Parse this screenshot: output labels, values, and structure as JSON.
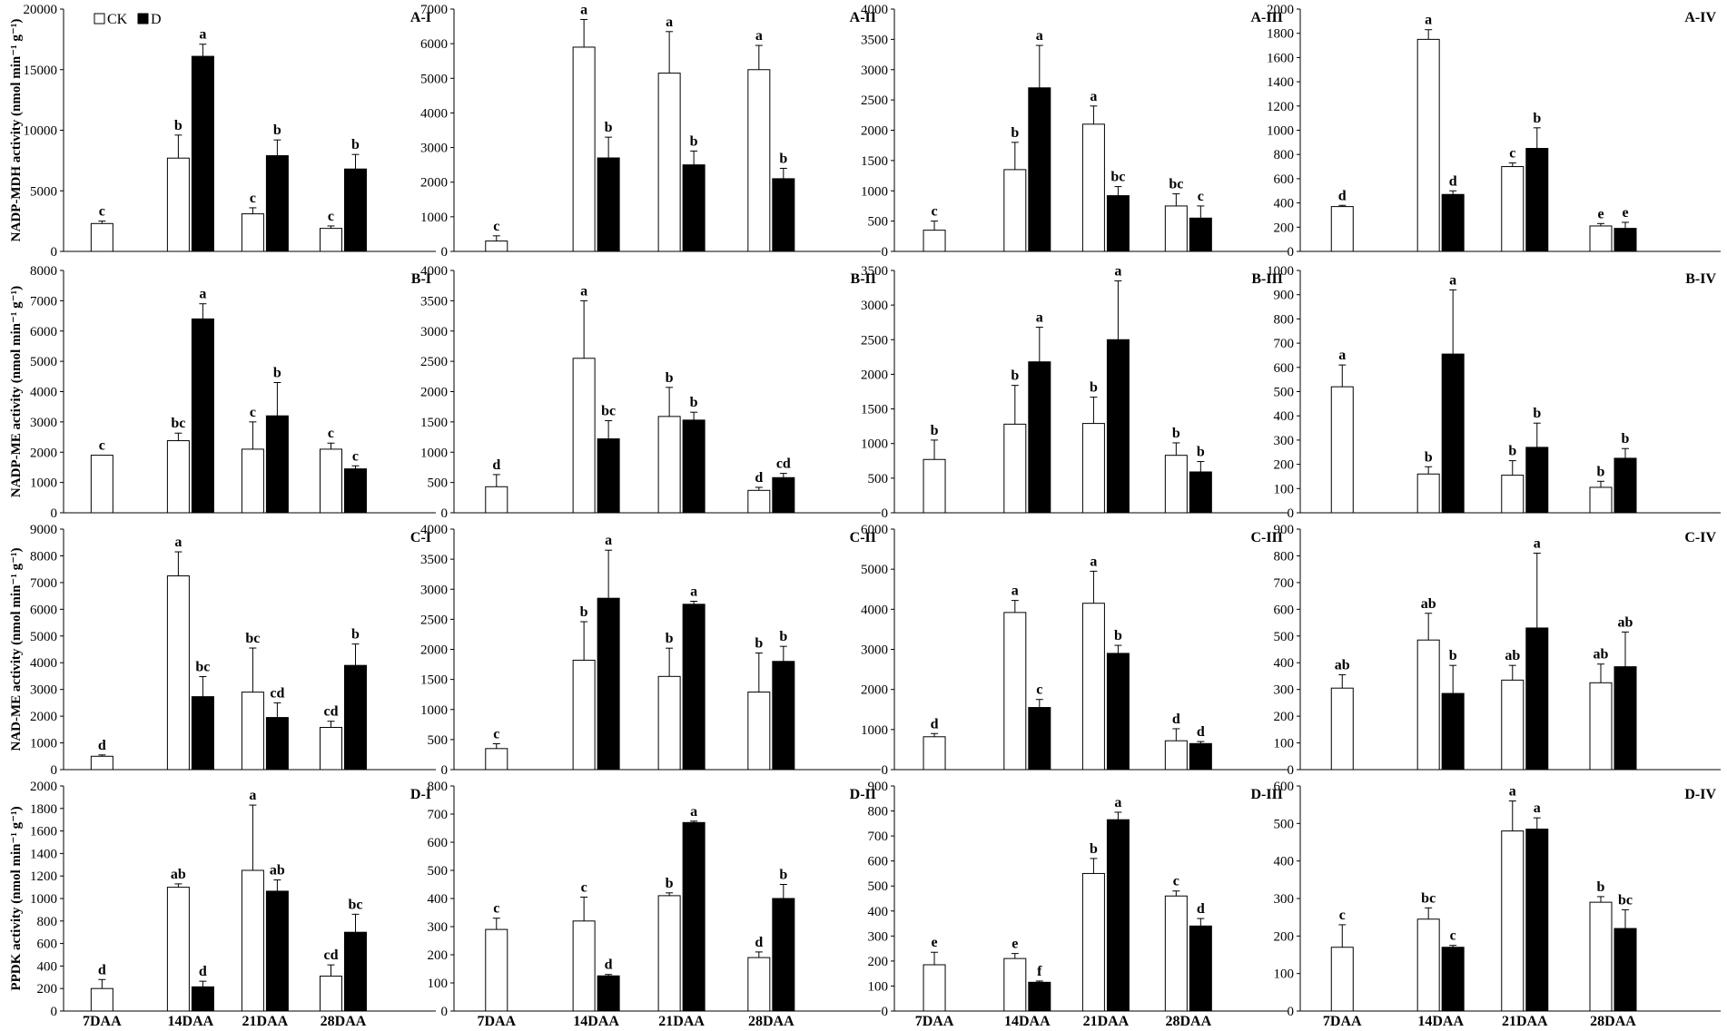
{
  "chart_data": {
    "type": "bar",
    "categories": [
      "7DAA",
      "14DAA",
      "21DAA",
      "28DAA"
    ],
    "legend": [
      {
        "name": "CK",
        "fill": "#ffffff"
      },
      {
        "name": "D",
        "fill": "#000000"
      }
    ],
    "rows": [
      {
        "ylabel": "NADP-MDH  activity (nmol min⁻¹ g⁻¹)",
        "panels": [
          {
            "title": "A-I",
            "ylim": [
              0,
              20000
            ],
            "step": 5000,
            "ck": [
              2300,
              7700,
              3100,
              1900
            ],
            "ck_err": [
              200,
              1900,
              500,
              200
            ],
            "ck_sig": [
              "c",
              "b",
              "c",
              "c"
            ],
            "d": [
              null,
              16100,
              7900,
              6800
            ],
            "d_err": [
              null,
              1000,
              1300,
              1200
            ],
            "d_sig": [
              "",
              "a",
              "b",
              "b"
            ]
          },
          {
            "title": "A-II",
            "ylim": [
              0,
              7000
            ],
            "step": 1000,
            "ck": [
              300,
              5900,
              5150,
              5250
            ],
            "ck_err": [
              150,
              800,
              1200,
              700
            ],
            "ck_sig": [
              "c",
              "a",
              "a",
              "a"
            ],
            "d": [
              null,
              2700,
              2500,
              2100
            ],
            "d_err": [
              null,
              600,
              400,
              300
            ],
            "d_sig": [
              "",
              "b",
              "b",
              "b"
            ]
          },
          {
            "title": "A-III",
            "ylim": [
              0,
              4000
            ],
            "step": 500,
            "ck": [
              350,
              1350,
              2100,
              750
            ],
            "ck_err": [
              150,
              450,
              300,
              200
            ],
            "ck_sig": [
              "c",
              "b",
              "a",
              "bc"
            ],
            "d": [
              null,
              2700,
              920,
              550
            ],
            "d_err": [
              null,
              700,
              150,
              200
            ],
            "d_sig": [
              "",
              "a",
              "bc",
              "c"
            ]
          },
          {
            "title": "A-IV",
            "ylim": [
              0,
              2000
            ],
            "step": 200,
            "ck": [
              370,
              1750,
              700,
              210
            ],
            "ck_err": [
              10,
              80,
              30,
              20
            ],
            "ck_sig": [
              "d",
              "a",
              "c",
              "e"
            ],
            "d": [
              null,
              470,
              850,
              190
            ],
            "d_err": [
              null,
              30,
              170,
              50
            ],
            "d_sig": [
              "",
              "d",
              "b",
              "e"
            ]
          }
        ]
      },
      {
        "ylabel": "NADP-ME activity (nmol min⁻¹ g⁻¹)",
        "panels": [
          {
            "title": "B-I",
            "ylim": [
              0,
              8000
            ],
            "step": 1000,
            "ck": [
              1900,
              2380,
              2100,
              2100
            ],
            "ck_err": [
              0,
              250,
              900,
              200
            ],
            "ck_sig": [
              "c",
              "bc",
              "c",
              "c"
            ],
            "d": [
              null,
              6400,
              3200,
              1450
            ],
            "d_err": [
              null,
              500,
              1100,
              100
            ],
            "d_sig": [
              "",
              "a",
              "b",
              "c"
            ]
          },
          {
            "title": "B-II",
            "ylim": [
              0,
              4000
            ],
            "step": 500,
            "ck": [
              430,
              2550,
              1590,
              370
            ],
            "ck_err": [
              200,
              950,
              480,
              50
            ],
            "ck_sig": [
              "d",
              "a",
              "b",
              "d"
            ],
            "d": [
              null,
              1220,
              1530,
              580
            ],
            "d_err": [
              null,
              300,
              130,
              70
            ],
            "d_sig": [
              "",
              "bc",
              "b",
              "cd"
            ]
          },
          {
            "title": "B-III",
            "ylim": [
              0,
              3500
            ],
            "step": 500,
            "ck": [
              770,
              1280,
              1290,
              830
            ],
            "ck_err": [
              280,
              560,
              380,
              180
            ],
            "ck_sig": [
              "b",
              "b",
              "b",
              "b"
            ],
            "d": [
              null,
              2180,
              2500,
              590
            ],
            "d_err": [
              null,
              500,
              850,
              150
            ],
            "d_sig": [
              "",
              "a",
              "a",
              "b"
            ]
          },
          {
            "title": "B-IV",
            "ylim": [
              0,
              1000
            ],
            "step": 100,
            "ck": [
              520,
              160,
              155,
              105
            ],
            "ck_err": [
              90,
              30,
              60,
              25
            ],
            "ck_sig": [
              "a",
              "b",
              "b",
              "b"
            ],
            "d": [
              null,
              655,
              270,
              225
            ],
            "d_err": [
              null,
              265,
              100,
              40
            ],
            "d_sig": [
              "",
              "a",
              "b",
              "b"
            ]
          }
        ]
      },
      {
        "ylabel": "NAD-ME activity (nmol min⁻¹ g⁻¹)",
        "panels": [
          {
            "title": "C-I",
            "ylim": [
              0,
              9000
            ],
            "step": 1000,
            "ck": [
              500,
              7250,
              2900,
              1580
            ],
            "ck_err": [
              50,
              900,
              1650,
              230
            ],
            "ck_sig": [
              "d",
              "a",
              "bc",
              "cd"
            ],
            "d": [
              null,
              2730,
              1950,
              3900
            ],
            "d_err": [
              null,
              750,
              550,
              800
            ],
            "d_sig": [
              "",
              "bc",
              "cd",
              "b"
            ]
          },
          {
            "title": "C-II",
            "ylim": [
              0,
              4000
            ],
            "step": 500,
            "ck": [
              350,
              1820,
              1550,
              1290
            ],
            "ck_err": [
              80,
              640,
              470,
              650
            ],
            "ck_sig": [
              "c",
              "b",
              "b",
              "b"
            ],
            "d": [
              null,
              2850,
              2750,
              1800
            ],
            "d_err": [
              null,
              800,
              50,
              250
            ],
            "d_sig": [
              "",
              "a",
              "a",
              "b"
            ]
          },
          {
            "title": "C-III",
            "ylim": [
              0,
              6000
            ],
            "step": 1000,
            "ck": [
              820,
              3920,
              4150,
              720
            ],
            "ck_err": [
              80,
              300,
              800,
              300
            ],
            "ck_sig": [
              "d",
              "a",
              "a",
              "d"
            ],
            "d": [
              null,
              1550,
              2900,
              650
            ],
            "d_err": [
              null,
              200,
              200,
              50
            ],
            "d_sig": [
              "",
              "c",
              "b",
              "d"
            ]
          },
          {
            "title": "C-IV",
            "ylim": [
              0,
              900
            ],
            "step": 100,
            "ck": [
              305,
              485,
              335,
              325
            ],
            "ck_err": [
              50,
              100,
              55,
              70
            ],
            "ck_sig": [
              "ab",
              "ab",
              "ab",
              "ab"
            ],
            "d": [
              null,
              285,
              530,
              385
            ],
            "d_err": [
              null,
              105,
              280,
              130
            ],
            "d_sig": [
              "",
              "b",
              "a",
              "ab"
            ]
          }
        ]
      },
      {
        "ylabel": "PPDK activity (nmol min⁻¹ g⁻¹)",
        "panels": [
          {
            "title": "D-I",
            "ylim": [
              0,
              2000
            ],
            "step": 200,
            "ck": [
              200,
              1100,
              1250,
              310
            ],
            "ck_err": [
              80,
              30,
              580,
              100
            ],
            "ck_sig": [
              "d",
              "ab",
              "a",
              "cd"
            ],
            "d": [
              null,
              215,
              1065,
              700
            ],
            "d_err": [
              null,
              50,
              100,
              160
            ],
            "d_sig": [
              "",
              "d",
              "ab",
              "bc"
            ]
          },
          {
            "title": "D-II",
            "ylim": [
              0,
              800
            ],
            "step": 100,
            "ck": [
              290,
              320,
              410,
              190
            ],
            "ck_err": [
              40,
              85,
              10,
              20
            ],
            "ck_sig": [
              "c",
              "c",
              "b",
              "d"
            ],
            "d": [
              null,
              125,
              670,
              400
            ],
            "d_err": [
              null,
              5,
              5,
              50
            ],
            "d_sig": [
              "",
              "d",
              "a",
              "b"
            ]
          },
          {
            "title": "D-III",
            "ylim": [
              0,
              900
            ],
            "step": 100,
            "ck": [
              185,
              210,
              550,
              460
            ],
            "ck_err": [
              50,
              20,
              60,
              20
            ],
            "ck_sig": [
              "e",
              "e",
              "b",
              "c"
            ],
            "d": [
              null,
              115,
              765,
              340
            ],
            "d_err": [
              null,
              5,
              30,
              30
            ],
            "d_sig": [
              "",
              "f",
              "a",
              "d"
            ]
          },
          {
            "title": "D-IV",
            "ylim": [
              0,
              600
            ],
            "step": 100,
            "ck": [
              170,
              245,
              480,
              290
            ],
            "ck_err": [
              60,
              30,
              80,
              15
            ],
            "ck_sig": [
              "c",
              "bc",
              "a",
              "b"
            ],
            "d": [
              null,
              170,
              485,
              220
            ],
            "d_err": [
              null,
              5,
              30,
              50
            ],
            "d_sig": [
              "",
              "c",
              "a",
              "bc"
            ]
          }
        ]
      }
    ]
  }
}
